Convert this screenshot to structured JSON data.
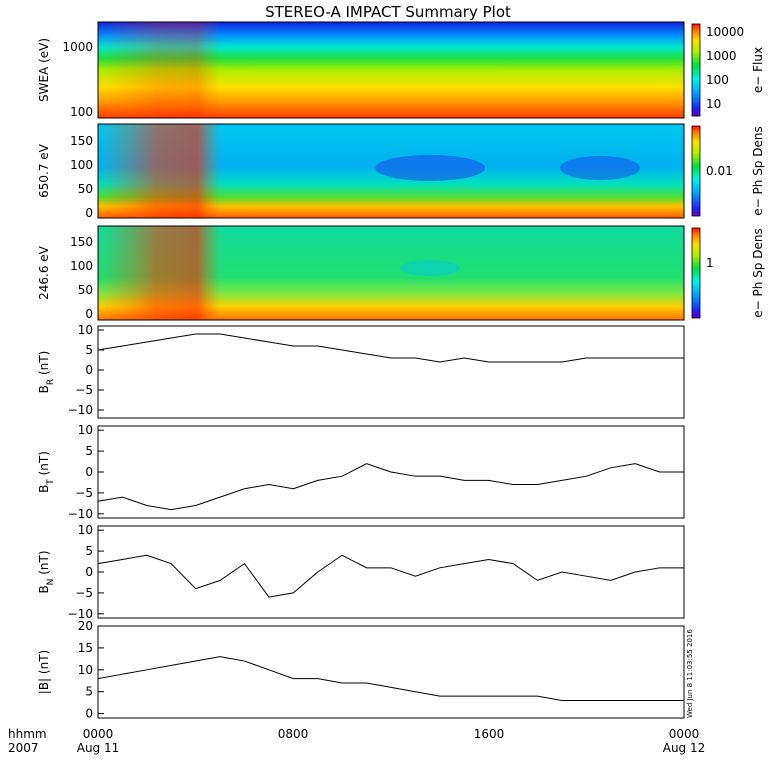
{
  "title": "STEREO-A IMPACT Summary Plot",
  "footer": {
    "row1_label": "hhmm",
    "row2_label": "2007",
    "ticks": [
      "0000",
      "0800",
      "1600",
      "0000"
    ],
    "dates": [
      "Aug 11",
      "",
      "",
      "Aug 12"
    ]
  },
  "timestamp": "Wed Jun  8 11:03:55 2016",
  "chart_data": [
    {
      "type": "heatmap",
      "panel": "swea",
      "ylabel": "SWEA (eV)",
      "yscale": "log",
      "ylim": [
        90,
        2000
      ],
      "yticks": [
        "100",
        "1000"
      ],
      "colorbar_label": "e− Flux",
      "colorbar_ticks": [
        "10",
        "100",
        "1000",
        "10000"
      ]
    },
    {
      "type": "heatmap",
      "panel": "pad650",
      "ylabel": "650.7 eV",
      "ylim": [
        -10,
        180
      ],
      "yticks": [
        "0",
        "50",
        "100",
        "150"
      ],
      "colorbar_label": "e− Ph Sp Dens",
      "colorbar_ticks": [
        "0.01"
      ]
    },
    {
      "type": "heatmap",
      "panel": "pad246",
      "ylabel": "246.6 eV",
      "ylim": [
        -10,
        180
      ],
      "yticks": [
        "0",
        "50",
        "100",
        "150"
      ],
      "colorbar_label": "e− Ph Sp Dens",
      "colorbar_ticks": [
        "1"
      ]
    },
    {
      "type": "line",
      "panel": "br",
      "ylabel": "B_R (nT)",
      "ylim": [
        -12,
        11
      ],
      "yticks": [
        "10",
        "5",
        "0",
        "−5",
        "−10"
      ],
      "x_hours": [
        0,
        1,
        2,
        3,
        4,
        5,
        6,
        7,
        8,
        9,
        10,
        11,
        12,
        13,
        14,
        15,
        16,
        17,
        18,
        19,
        20,
        21,
        22,
        23,
        24
      ],
      "values": [
        5,
        6,
        7,
        8,
        9,
        9,
        8,
        7,
        6,
        6,
        5,
        4,
        3,
        3,
        2,
        3,
        2,
        2,
        2,
        2,
        3,
        3,
        3,
        3,
        3
      ]
    },
    {
      "type": "line",
      "panel": "bt",
      "ylabel": "B_T (nT)",
      "ylim": [
        -11,
        11
      ],
      "yticks": [
        "10",
        "5",
        "0",
        "−5",
        "−10"
      ],
      "x_hours": [
        0,
        1,
        2,
        3,
        4,
        5,
        6,
        7,
        8,
        9,
        10,
        11,
        12,
        13,
        14,
        15,
        16,
        17,
        18,
        19,
        20,
        21,
        22,
        23,
        24
      ],
      "values": [
        -7,
        -6,
        -8,
        -9,
        -8,
        -6,
        -4,
        -3,
        -4,
        -2,
        -1,
        2,
        0,
        -1,
        -1,
        -2,
        -2,
        -3,
        -3,
        -2,
        -1,
        1,
        2,
        0,
        0
      ]
    },
    {
      "type": "line",
      "panel": "bn",
      "ylabel": "B_N (nT)",
      "ylim": [
        -11,
        11
      ],
      "yticks": [
        "10",
        "5",
        "0",
        "−5",
        "−10"
      ],
      "x_hours": [
        0,
        1,
        2,
        3,
        4,
        5,
        6,
        7,
        8,
        9,
        10,
        11,
        12,
        13,
        14,
        15,
        16,
        17,
        18,
        19,
        20,
        21,
        22,
        23,
        24
      ],
      "values": [
        2,
        3,
        4,
        2,
        -4,
        -2,
        2,
        -6,
        -5,
        0,
        4,
        1,
        1,
        -1,
        1,
        2,
        3,
        2,
        -2,
        0,
        -1,
        -2,
        0,
        1,
        1
      ]
    },
    {
      "type": "line",
      "panel": "b",
      "ylabel": "|B| (nT)",
      "ylim": [
        -1,
        20
      ],
      "yticks": [
        "20",
        "15",
        "10",
        "5",
        "0"
      ],
      "x_hours": [
        0,
        1,
        2,
        3,
        4,
        5,
        6,
        7,
        8,
        9,
        10,
        11,
        12,
        13,
        14,
        15,
        16,
        17,
        18,
        19,
        20,
        21,
        22,
        23,
        24
      ],
      "values": [
        8,
        9,
        10,
        11,
        12,
        13,
        12,
        10,
        8,
        8,
        7,
        7,
        6,
        5,
        4,
        4,
        4,
        4,
        4,
        3,
        3,
        3,
        3,
        3,
        3
      ]
    }
  ]
}
